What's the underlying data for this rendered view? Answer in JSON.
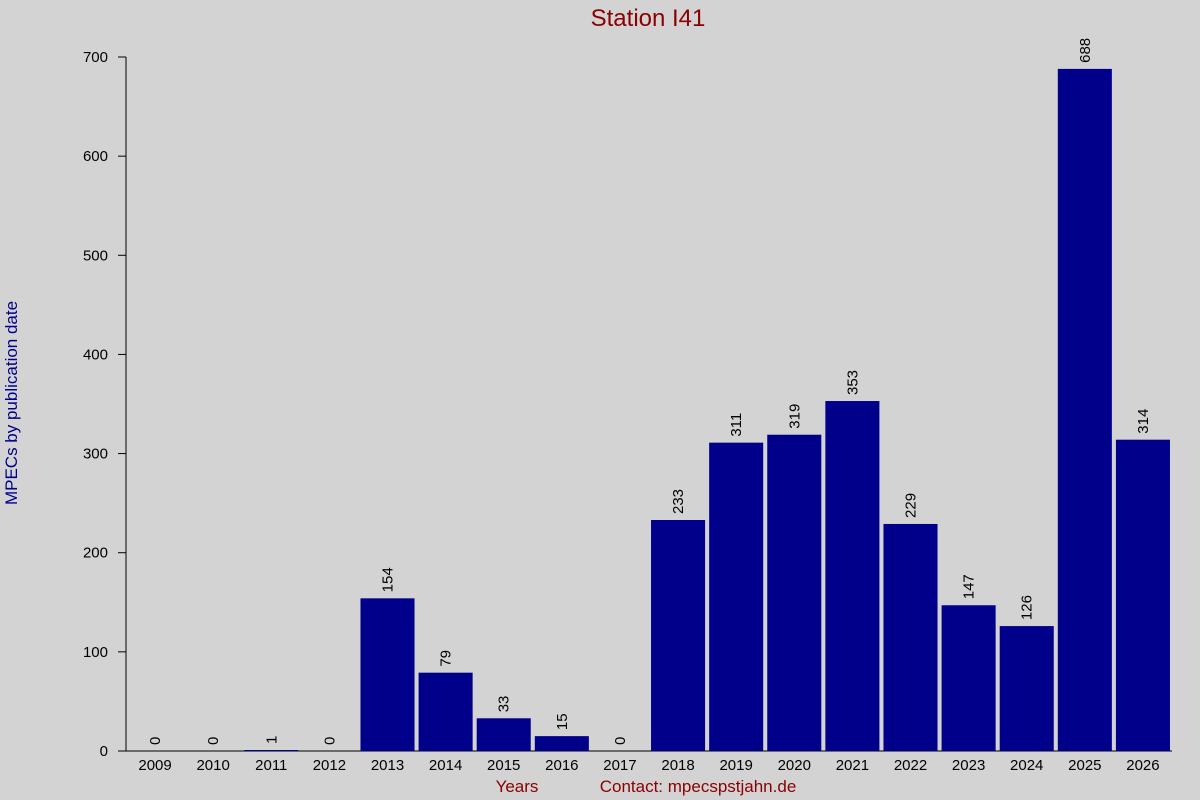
{
  "chart_data": {
    "type": "bar",
    "title": "Station I41",
    "x_label": "Years",
    "contact": "Contact: mpecspstjahn.de",
    "y_label": "MPECs by publication date",
    "categories": [
      "2009",
      "2010",
      "2011",
      "2012",
      "2013",
      "2014",
      "2015",
      "2016",
      "2017",
      "2018",
      "2019",
      "2020",
      "2021",
      "2022",
      "2023",
      "2024",
      "2025",
      "2026"
    ],
    "values": [
      0,
      0,
      1,
      0,
      154,
      79,
      33,
      15,
      0,
      233,
      311,
      319,
      353,
      229,
      147,
      126,
      688,
      314
    ],
    "color": "#00008b",
    "ylim": [
      0,
      700
    ],
    "yticks": [
      0,
      100,
      200,
      300,
      400,
      500,
      600,
      700
    ],
    "grid": false
  }
}
